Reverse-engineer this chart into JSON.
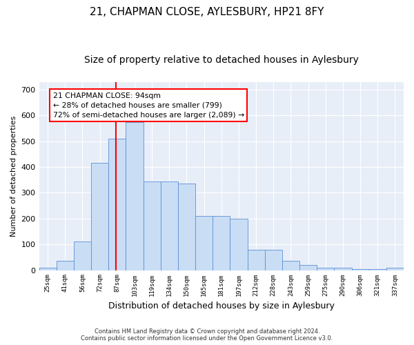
{
  "title": "21, CHAPMAN CLOSE, AYLESBURY, HP21 8FY",
  "subtitle": "Size of property relative to detached houses in Aylesbury",
  "xlabel": "Distribution of detached houses by size in Aylesbury",
  "ylabel": "Number of detached properties",
  "bar_labels": [
    "25sqm",
    "41sqm",
    "56sqm",
    "72sqm",
    "87sqm",
    "103sqm",
    "119sqm",
    "134sqm",
    "150sqm",
    "165sqm",
    "181sqm",
    "197sqm",
    "212sqm",
    "228sqm",
    "243sqm",
    "259sqm",
    "275sqm",
    "290sqm",
    "306sqm",
    "321sqm",
    "337sqm"
  ],
  "bar_heights": [
    10,
    35,
    110,
    415,
    510,
    575,
    345,
    345,
    335,
    210,
    210,
    200,
    80,
    80,
    35,
    20,
    10,
    10,
    5,
    5,
    10
  ],
  "bar_color": "#c9ddf5",
  "bar_edge_color": "#5b8fd4",
  "vline_color": "red",
  "annotation_text": "21 CHAPMAN CLOSE: 94sqm\n← 28% of detached houses are smaller (799)\n72% of semi-detached houses are larger (2,089) →",
  "annotation_box_color": "white",
  "annotation_box_edge": "red",
  "ylim": [
    0,
    730
  ],
  "yticks": [
    0,
    100,
    200,
    300,
    400,
    500,
    600,
    700
  ],
  "plot_bg_color": "#e8eef8",
  "footer_line1": "Contains HM Land Registry data © Crown copyright and database right 2024.",
  "footer_line2": "Contains public sector information licensed under the Open Government Licence v3.0."
}
